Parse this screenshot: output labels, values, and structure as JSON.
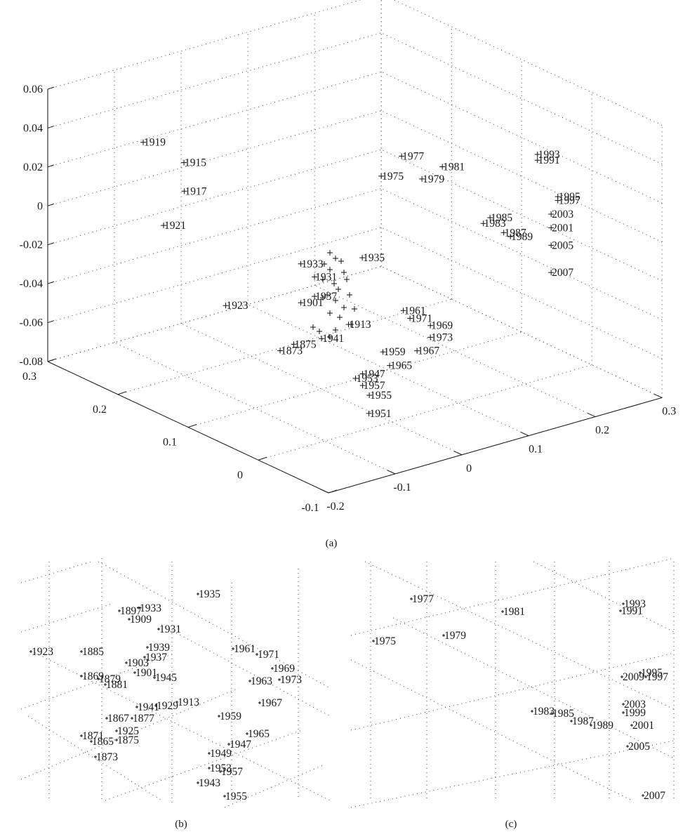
{
  "chart_data": [
    {
      "type": "scatter",
      "panel": "(a)",
      "title": "",
      "xlabel": "",
      "ylabel": "",
      "zlabel": "",
      "x_ticks": [
        "-0.2",
        "-0.1",
        "0",
        "0.1",
        "0.2",
        "0.3"
      ],
      "y_ticks": [
        "-0.1",
        "0",
        "0.1",
        "0.2",
        "0.3"
      ],
      "z_ticks": [
        "0.06",
        "0.04",
        "0.02",
        "0",
        "-0.02",
        "-0.04",
        "-0.06",
        "-0.08"
      ],
      "grid": true,
      "points": [
        {
          "label": "1919",
          "x": -0.12,
          "y": 0.24,
          "z": 0.035
        },
        {
          "label": "1915",
          "x": -0.08,
          "y": 0.22,
          "z": 0.024
        },
        {
          "label": "1917",
          "x": -0.09,
          "y": 0.21,
          "z": 0.012
        },
        {
          "label": "1921",
          "x": -0.1,
          "y": 0.23,
          "z": -0.008
        },
        {
          "label": "1935",
          "x": 0.04,
          "y": 0.08,
          "z": -0.013
        },
        {
          "label": "1933",
          "x": -0.01,
          "y": 0.12,
          "z": -0.018
        },
        {
          "label": "1931",
          "x": 0.0,
          "y": 0.11,
          "z": -0.024
        },
        {
          "label": "1923",
          "x": -0.07,
          "y": 0.17,
          "z": -0.042
        },
        {
          "label": "1901",
          "x": -0.01,
          "y": 0.12,
          "z": -0.038
        },
        {
          "label": "1937",
          "x": 0.0,
          "y": 0.11,
          "z": -0.034
        },
        {
          "label": "1913",
          "x": 0.03,
          "y": 0.09,
          "z": -0.048
        },
        {
          "label": "1941",
          "x": 0.0,
          "y": 0.1,
          "z": -0.054
        },
        {
          "label": "1875",
          "x": -0.01,
          "y": 0.13,
          "z": -0.061
        },
        {
          "label": "1873",
          "x": -0.02,
          "y": 0.14,
          "z": -0.065
        },
        {
          "label": "1961",
          "x": 0.07,
          "y": 0.05,
          "z": -0.038
        },
        {
          "label": "1971",
          "x": 0.08,
          "y": 0.05,
          "z": -0.043
        },
        {
          "label": "1969",
          "x": 0.1,
          "y": 0.04,
          "z": -0.047
        },
        {
          "label": "1973",
          "x": 0.1,
          "y": 0.04,
          "z": -0.053
        },
        {
          "label": "1967",
          "x": 0.08,
          "y": 0.04,
          "z": -0.058
        },
        {
          "label": "1959",
          "x": 0.05,
          "y": 0.06,
          "z": -0.059
        },
        {
          "label": "1965",
          "x": 0.06,
          "y": 0.06,
          "z": -0.067
        },
        {
          "label": "1947",
          "x": 0.03,
          "y": 0.07,
          "z": -0.07
        },
        {
          "label": "1953",
          "x": 0.03,
          "y": 0.08,
          "z": -0.074
        },
        {
          "label": "1957",
          "x": 0.03,
          "y": 0.07,
          "z": -0.076
        },
        {
          "label": "1955",
          "x": 0.04,
          "y": 0.07,
          "z": -0.082
        },
        {
          "label": "1951",
          "x": 0.05,
          "y": 0.08,
          "z": -0.094
        },
        {
          "label": "1977",
          "x": 0.12,
          "y": 0.1,
          "z": 0.028
        },
        {
          "label": "1975",
          "x": 0.1,
          "y": 0.11,
          "z": 0.018
        },
        {
          "label": "1979",
          "x": 0.14,
          "y": 0.09,
          "z": 0.016
        },
        {
          "label": "1981",
          "x": 0.16,
          "y": 0.08,
          "z": 0.022
        },
        {
          "label": "1993",
          "x": 0.25,
          "y": 0.03,
          "z": 0.028
        },
        {
          "label": "1991",
          "x": 0.25,
          "y": 0.03,
          "z": 0.025
        },
        {
          "label": "1995",
          "x": 0.27,
          "y": 0.02,
          "z": 0.006
        },
        {
          "label": "1997",
          "x": 0.27,
          "y": 0.02,
          "z": 0.004
        },
        {
          "label": "1985",
          "x": 0.2,
          "y": 0.05,
          "z": -0.003
        },
        {
          "label": "1983",
          "x": 0.19,
          "y": 0.05,
          "z": -0.005
        },
        {
          "label": "2003",
          "x": 0.26,
          "y": 0.02,
          "z": -0.002
        },
        {
          "label": "2001",
          "x": 0.26,
          "y": 0.02,
          "z": -0.009
        },
        {
          "label": "1987",
          "x": 0.21,
          "y": 0.04,
          "z": -0.01
        },
        {
          "label": "1989",
          "x": 0.22,
          "y": 0.04,
          "z": -0.013
        },
        {
          "label": "2005",
          "x": 0.26,
          "y": 0.02,
          "z": -0.018
        },
        {
          "label": "2007",
          "x": 0.26,
          "y": 0.02,
          "z": -0.032
        }
      ]
    },
    {
      "type": "scatter",
      "panel": "(b)",
      "title": "",
      "grid": true,
      "points": [
        {
          "label": "1935"
        },
        {
          "label": "1933"
        },
        {
          "label": "1897"
        },
        {
          "label": "1909"
        },
        {
          "label": "1931"
        },
        {
          "label": "1923"
        },
        {
          "label": "1885"
        },
        {
          "label": "1903"
        },
        {
          "label": "1937"
        },
        {
          "label": "1939"
        },
        {
          "label": "1869"
        },
        {
          "label": "1879"
        },
        {
          "label": "1881"
        },
        {
          "label": "1901"
        },
        {
          "label": "1945"
        },
        {
          "label": "1961"
        },
        {
          "label": "1971"
        },
        {
          "label": "1969"
        },
        {
          "label": "1963"
        },
        {
          "label": "1973"
        },
        {
          "label": "1913"
        },
        {
          "label": "1929"
        },
        {
          "label": "1941"
        },
        {
          "label": "1867"
        },
        {
          "label": "1877"
        },
        {
          "label": "1925"
        },
        {
          "label": "1871"
        },
        {
          "label": "1865"
        },
        {
          "label": "1875"
        },
        {
          "label": "1873"
        },
        {
          "label": "1967"
        },
        {
          "label": "1959"
        },
        {
          "label": "1965"
        },
        {
          "label": "1947"
        },
        {
          "label": "1949"
        },
        {
          "label": "1953"
        },
        {
          "label": "1957"
        },
        {
          "label": "1943"
        },
        {
          "label": "1955"
        }
      ]
    },
    {
      "type": "scatter",
      "panel": "(c)",
      "title": "",
      "grid": true,
      "points": [
        {
          "label": "1977"
        },
        {
          "label": "1981"
        },
        {
          "label": "1975"
        },
        {
          "label": "1979"
        },
        {
          "label": "1993"
        },
        {
          "label": "1991"
        },
        {
          "label": "1995"
        },
        {
          "label": "2009"
        },
        {
          "label": "1997"
        },
        {
          "label": "1983"
        },
        {
          "label": "1985"
        },
        {
          "label": "2003"
        },
        {
          "label": "1999"
        },
        {
          "label": "1987"
        },
        {
          "label": "1989"
        },
        {
          "label": "2001"
        },
        {
          "label": "2005"
        },
        {
          "label": "2007"
        }
      ]
    }
  ],
  "captions": {
    "a": "(a)",
    "b": "(b)",
    "c": "(c)"
  }
}
